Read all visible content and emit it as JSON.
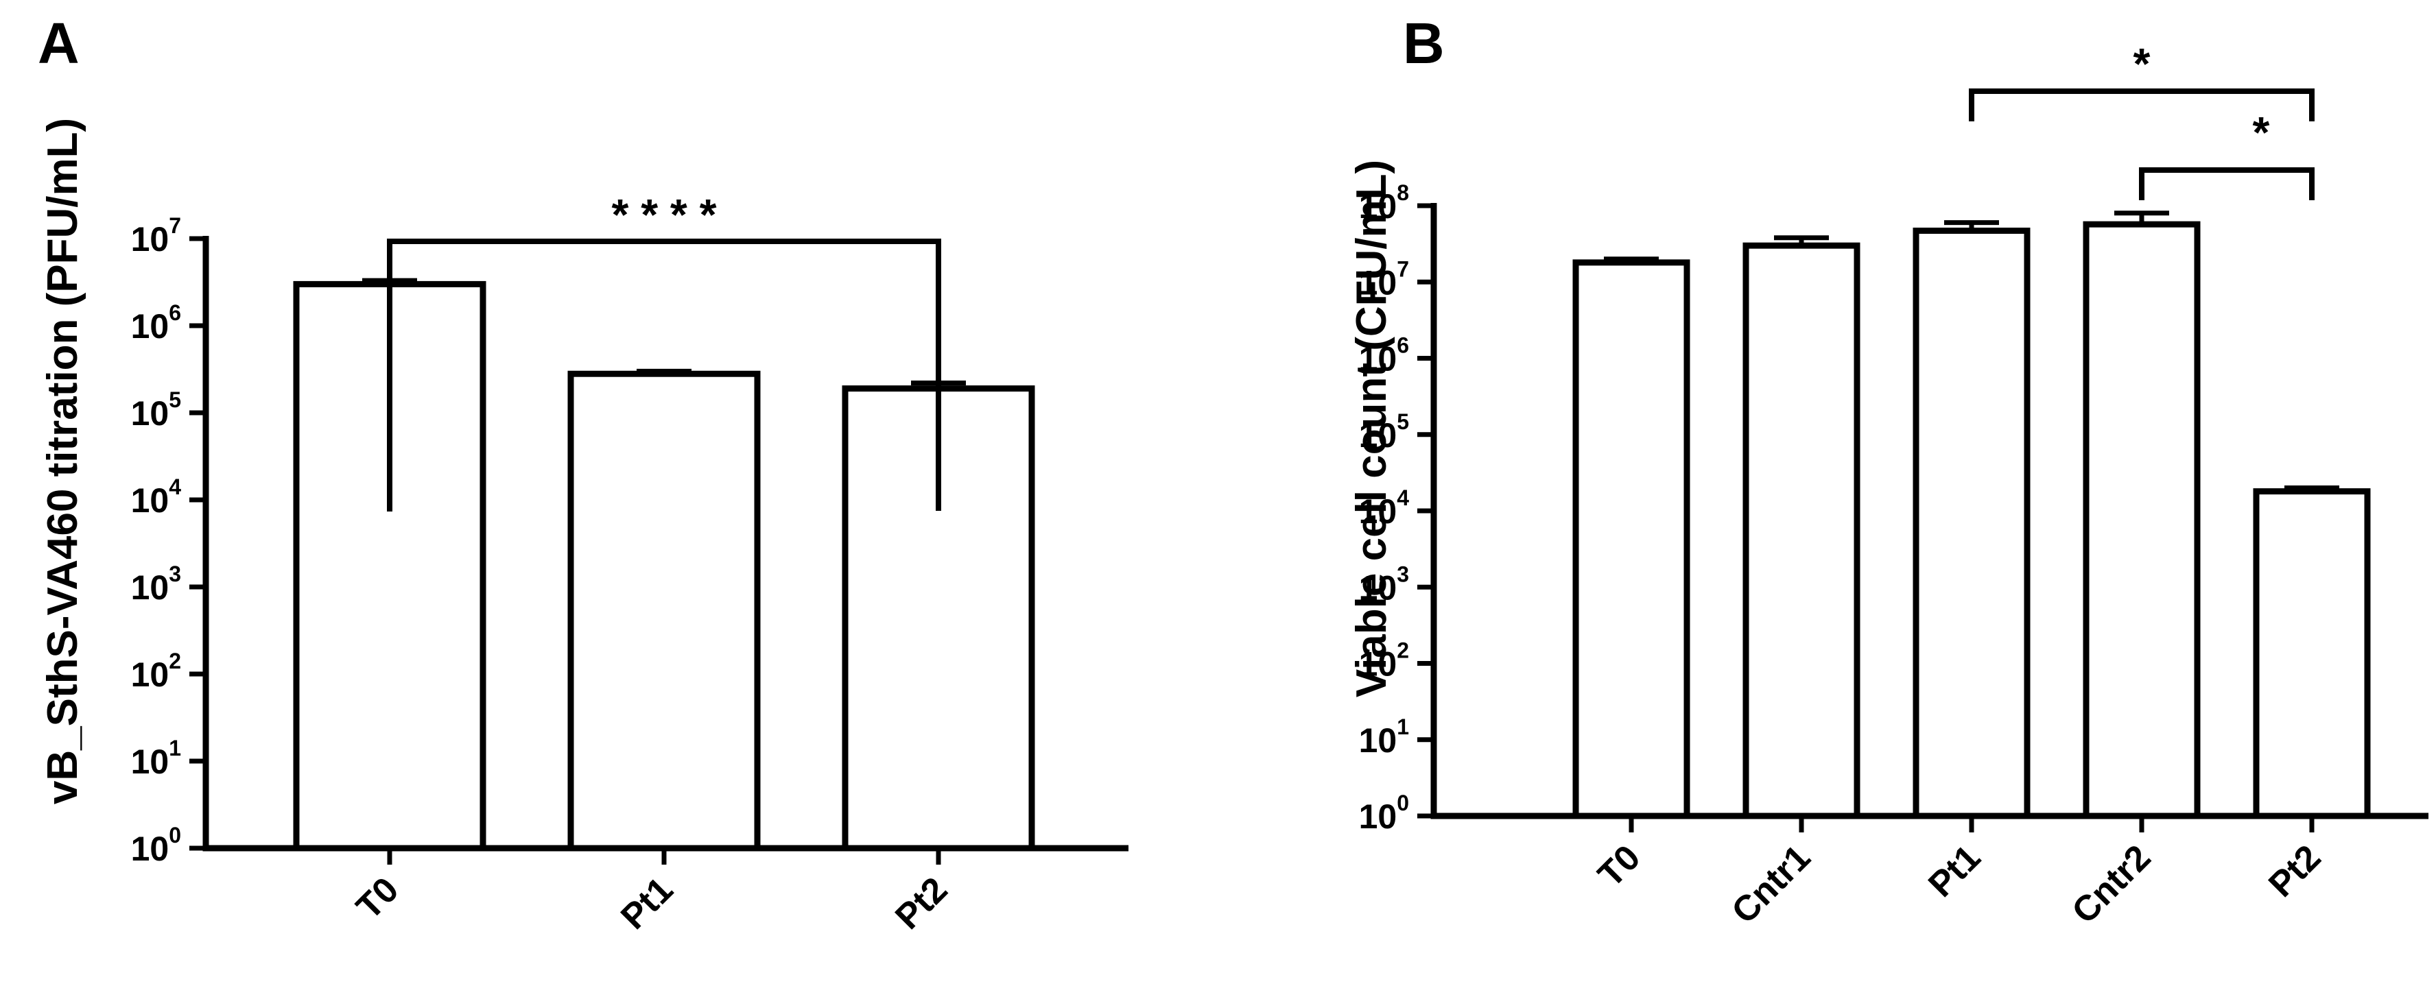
{
  "colors": {
    "ink": "#000000",
    "bar_fill": "#ffffff"
  },
  "chart_data": [
    {
      "panel": "A",
      "type": "bar",
      "ylabel": "vB_SthS-VA460 titration (PFU/mL)",
      "yscale": "log10",
      "ylim": [
        1,
        10000000
      ],
      "yticks": [
        {
          "base": "10",
          "exp": "0",
          "value": 1
        },
        {
          "base": "10",
          "exp": "1",
          "value": 10
        },
        {
          "base": "10",
          "exp": "2",
          "value": 100
        },
        {
          "base": "10",
          "exp": "3",
          "value": 1000
        },
        {
          "base": "10",
          "exp": "4",
          "value": 10000
        },
        {
          "base": "10",
          "exp": "5",
          "value": 100000
        },
        {
          "base": "10",
          "exp": "6",
          "value": 1000000
        },
        {
          "base": "10",
          "exp": "7",
          "value": 10000000
        }
      ],
      "categories": [
        "T0",
        "Pt1",
        "Pt2"
      ],
      "values": [
        3000000,
        280000,
        190000
      ],
      "errors": [
        3300000,
        300000,
        220000
      ],
      "significance": [
        {
          "from": "T0",
          "to": "Pt2",
          "label": "* * * *"
        }
      ]
    },
    {
      "panel": "B",
      "type": "bar",
      "ylabel": "Viable cell count (CFU/mL)",
      "yscale": "log10",
      "ylim": [
        1,
        100000000
      ],
      "yticks": [
        {
          "base": "10",
          "exp": "0",
          "value": 1
        },
        {
          "base": "10",
          "exp": "1",
          "value": 10
        },
        {
          "base": "10",
          "exp": "2",
          "value": 100
        },
        {
          "base": "10",
          "exp": "3",
          "value": 1000
        },
        {
          "base": "10",
          "exp": "4",
          "value": 10000
        },
        {
          "base": "10",
          "exp": "5",
          "value": 100000
        },
        {
          "base": "10",
          "exp": "6",
          "value": 1000000
        },
        {
          "base": "10",
          "exp": "7",
          "value": 10000000
        },
        {
          "base": "10",
          "exp": "8",
          "value": 100000000
        }
      ],
      "categories": [
        "T0",
        "Cntr1",
        "Pt1",
        "Cntr2",
        "Pt2"
      ],
      "values": [
        18000000,
        30000000,
        47000000,
        57000000,
        18000
      ],
      "errors": [
        20000000,
        38000000,
        60000000,
        80000000,
        20000
      ],
      "significance": [
        {
          "from": "Pt1",
          "to": "Pt2",
          "label": "*"
        },
        {
          "from": "Cntr2",
          "to": "Pt2",
          "label": "*"
        }
      ]
    }
  ]
}
